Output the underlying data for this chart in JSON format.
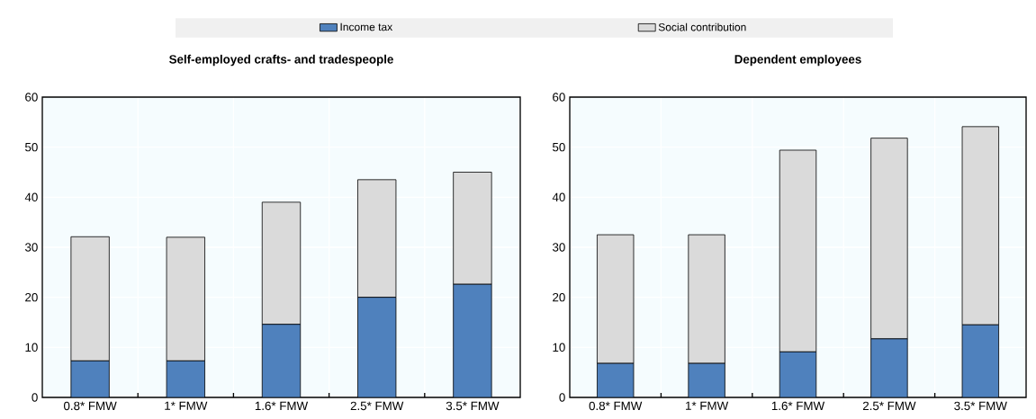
{
  "chart_data": [
    {
      "type": "bar",
      "stacked": true,
      "title": "Self-employed crafts- and tradespeople",
      "categories": [
        "0.8* FMW",
        "1* FMW",
        "1.6* FMW",
        "2.5* FMW",
        "3.5* FMW"
      ],
      "series": [
        {
          "name": "Income tax",
          "color": "#4f81bd",
          "values": [
            7.3,
            7.3,
            14.6,
            20.0,
            22.6
          ]
        },
        {
          "name": "Social contribution",
          "color": "#dadada",
          "values": [
            24.8,
            24.7,
            24.4,
            23.5,
            22.4
          ]
        }
      ],
      "ylim": [
        0,
        60
      ],
      "yticks": [
        0,
        10,
        20,
        30,
        40,
        50,
        60
      ],
      "grid": true,
      "legend": "top"
    },
    {
      "type": "bar",
      "stacked": true,
      "title": "Dependent employees",
      "categories": [
        "0.8* FMW",
        "1* FMW",
        "1.6* FMW",
        "2.5* FMW",
        "3.5* FMW"
      ],
      "series": [
        {
          "color": "#4f81bd",
          "values": [
            6.8,
            6.8,
            9.1,
            11.7,
            14.5
          ]
        },
        {
          "color": "#dadada",
          "values": [
            25.7,
            25.7,
            40.3,
            40.1,
            39.6
          ]
        }
      ],
      "ylim": [
        0,
        60
      ],
      "yticks": [
        0,
        10,
        20,
        30,
        40,
        50,
        60
      ],
      "grid": true
    }
  ]
}
